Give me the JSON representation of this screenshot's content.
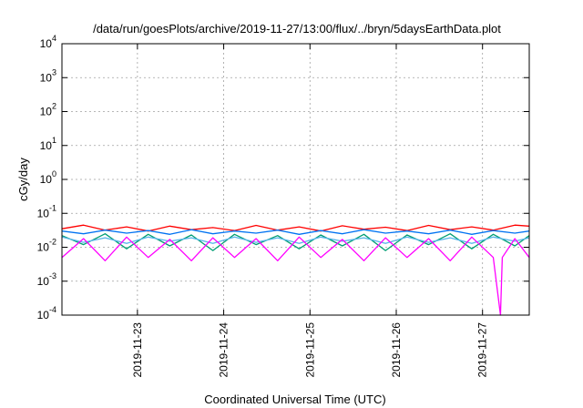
{
  "chart_data": {
    "type": "line",
    "title": "/data/run/goesPlots/archive/2019-11-27/13:00/flux/../bryn/5daysEarthData.plot",
    "xlabel": "Coordinated Universal Time (UTC)",
    "ylabel": "cGy/day",
    "x_scale": "time",
    "y_scale": "log",
    "xlim": [
      "2019-11-22T03:00",
      "2019-11-27T13:00"
    ],
    "ylim": [
      0.0001,
      10000
    ],
    "grid": true,
    "legend": "none",
    "x_ticks": [
      "2019-11-23",
      "2019-11-24",
      "2019-11-25",
      "2019-11-26",
      "2019-11-27"
    ],
    "y_ticks": [
      {
        "value": 0.0001,
        "base": "10",
        "exp": "-4"
      },
      {
        "value": 0.001,
        "base": "10",
        "exp": "-3"
      },
      {
        "value": 0.01,
        "base": "10",
        "exp": "-2"
      },
      {
        "value": 0.1,
        "base": "10",
        "exp": "-1"
      },
      {
        "value": 1,
        "base": "10",
        "exp": "0"
      },
      {
        "value": 10,
        "base": "10",
        "exp": "1"
      },
      {
        "value": 100,
        "base": "10",
        "exp": "2"
      },
      {
        "value": 1000,
        "base": "10",
        "exp": "3"
      },
      {
        "value": 10000,
        "base": "10",
        "exp": "4"
      }
    ],
    "series": [
      {
        "color": "#ff0000",
        "x": [
          "2019-11-22T03:00",
          "2019-11-22T09:00",
          "2019-11-22T15:00",
          "2019-11-22T21:00",
          "2019-11-23T03:00",
          "2019-11-23T09:00",
          "2019-11-23T15:00",
          "2019-11-23T21:00",
          "2019-11-24T03:00",
          "2019-11-24T09:00",
          "2019-11-24T15:00",
          "2019-11-24T21:00",
          "2019-11-25T03:00",
          "2019-11-25T09:00",
          "2019-11-25T15:00",
          "2019-11-25T21:00",
          "2019-11-26T03:00",
          "2019-11-26T09:00",
          "2019-11-26T15:00",
          "2019-11-26T21:00",
          "2019-11-27T03:00",
          "2019-11-27T09:00",
          "2019-11-27T13:00"
        ],
        "y": [
          0.035,
          0.045,
          0.032,
          0.04,
          0.03,
          0.042,
          0.033,
          0.038,
          0.031,
          0.044,
          0.032,
          0.04,
          0.03,
          0.043,
          0.034,
          0.039,
          0.031,
          0.044,
          0.033,
          0.04,
          0.032,
          0.045,
          0.042
        ]
      },
      {
        "color": "#009e73",
        "x": [
          "2019-11-22T03:00",
          "2019-11-22T09:00",
          "2019-11-22T15:00",
          "2019-11-22T21:00",
          "2019-11-23T03:00",
          "2019-11-23T09:00",
          "2019-11-23T15:00",
          "2019-11-23T21:00",
          "2019-11-24T03:00",
          "2019-11-24T09:00",
          "2019-11-24T15:00",
          "2019-11-24T21:00",
          "2019-11-25T03:00",
          "2019-11-25T09:00",
          "2019-11-25T15:00",
          "2019-11-25T21:00",
          "2019-11-26T03:00",
          "2019-11-26T09:00",
          "2019-11-26T15:00",
          "2019-11-26T21:00",
          "2019-11-27T03:00",
          "2019-11-27T09:00",
          "2019-11-27T13:00"
        ],
        "y": [
          0.022,
          0.012,
          0.025,
          0.009,
          0.024,
          0.011,
          0.023,
          0.008,
          0.024,
          0.012,
          0.022,
          0.009,
          0.023,
          0.011,
          0.024,
          0.008,
          0.023,
          0.012,
          0.025,
          0.009,
          0.024,
          0.011,
          0.022
        ]
      },
      {
        "color": "#56b4e9",
        "x": [
          "2019-11-22T03:00",
          "2019-11-22T09:00",
          "2019-11-22T15:00",
          "2019-11-22T21:00",
          "2019-11-23T03:00",
          "2019-11-23T09:00",
          "2019-11-23T15:00",
          "2019-11-23T21:00",
          "2019-11-24T03:00",
          "2019-11-24T09:00",
          "2019-11-24T15:00",
          "2019-11-24T21:00",
          "2019-11-25T03:00",
          "2019-11-25T09:00",
          "2019-11-25T15:00",
          "2019-11-25T21:00",
          "2019-11-26T03:00",
          "2019-11-26T09:00",
          "2019-11-26T15:00",
          "2019-11-26T21:00",
          "2019-11-27T03:00",
          "2019-11-27T09:00",
          "2019-11-27T13:00"
        ],
        "y": [
          0.02,
          0.014,
          0.019,
          0.013,
          0.02,
          0.015,
          0.019,
          0.013,
          0.02,
          0.014,
          0.019,
          0.013,
          0.02,
          0.015,
          0.019,
          0.013,
          0.02,
          0.014,
          0.019,
          0.013,
          0.02,
          0.015,
          0.019
        ]
      },
      {
        "color": "#0072f2",
        "x": [
          "2019-11-22T03:00",
          "2019-11-22T09:00",
          "2019-11-22T15:00",
          "2019-11-22T21:00",
          "2019-11-23T03:00",
          "2019-11-23T09:00",
          "2019-11-23T15:00",
          "2019-11-23T21:00",
          "2019-11-24T03:00",
          "2019-11-24T09:00",
          "2019-11-24T15:00",
          "2019-11-24T21:00",
          "2019-11-25T03:00",
          "2019-11-25T09:00",
          "2019-11-25T15:00",
          "2019-11-25T21:00",
          "2019-11-26T03:00",
          "2019-11-26T09:00",
          "2019-11-26T15:00",
          "2019-11-26T21:00",
          "2019-11-27T03:00",
          "2019-11-27T09:00",
          "2019-11-27T13:00"
        ],
        "y": [
          0.03,
          0.025,
          0.032,
          0.026,
          0.031,
          0.024,
          0.033,
          0.025,
          0.03,
          0.026,
          0.032,
          0.024,
          0.031,
          0.025,
          0.033,
          0.026,
          0.03,
          0.025,
          0.032,
          0.024,
          0.031,
          0.026,
          0.03
        ]
      },
      {
        "color": "#ff00ff",
        "x": [
          "2019-11-22T03:00",
          "2019-11-22T09:00",
          "2019-11-22T15:00",
          "2019-11-22T21:00",
          "2019-11-23T03:00",
          "2019-11-23T09:00",
          "2019-11-23T15:00",
          "2019-11-23T21:00",
          "2019-11-24T03:00",
          "2019-11-24T09:00",
          "2019-11-24T15:00",
          "2019-11-24T21:00",
          "2019-11-25T03:00",
          "2019-11-25T09:00",
          "2019-11-25T15:00",
          "2019-11-25T21:00",
          "2019-11-26T03:00",
          "2019-11-26T09:00",
          "2019-11-26T15:00",
          "2019-11-26T21:00",
          "2019-11-27T03:00",
          "2019-11-27T05:00",
          "2019-11-27T05:30",
          "2019-11-27T09:00",
          "2019-11-27T13:00"
        ],
        "y": [
          0.005,
          0.018,
          0.004,
          0.02,
          0.005,
          0.017,
          0.004,
          0.019,
          0.005,
          0.018,
          0.004,
          0.02,
          0.005,
          0.017,
          0.004,
          0.019,
          0.005,
          0.018,
          0.004,
          0.02,
          0.005,
          0.0001,
          0.005,
          0.018,
          0.005
        ]
      }
    ]
  }
}
